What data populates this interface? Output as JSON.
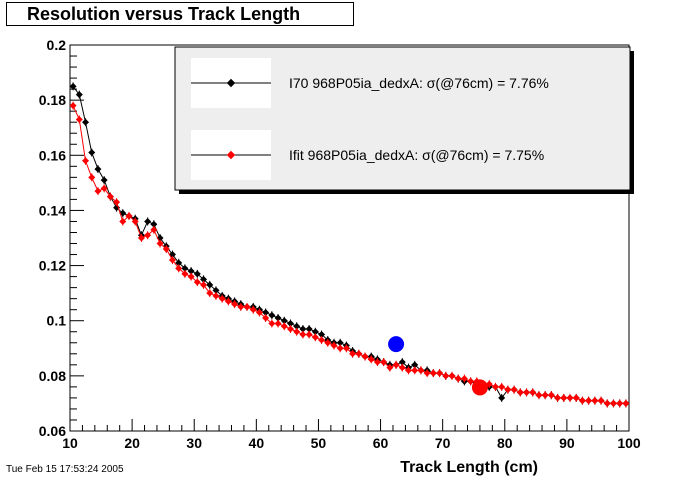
{
  "timestamp": "Tue Feb 15 17:53:24 2005",
  "chart_data": {
    "type": "scatter",
    "title": "Resolution versus Track Length",
    "xlabel": "Track Length (cm)",
    "ylabel": "",
    "xlim": [
      10,
      100
    ],
    "ylim": [
      0.06,
      0.2
    ],
    "x_ticks": [
      10,
      20,
      30,
      40,
      50,
      60,
      70,
      80,
      90,
      100
    ],
    "x_tick_labels": [
      "10",
      "20",
      "30",
      "40",
      "50",
      "60",
      "70",
      "80",
      "90",
      "100"
    ],
    "y_ticks": [
      0.06,
      0.08,
      0.1,
      0.12,
      0.14,
      0.16,
      0.18,
      0.2
    ],
    "y_tick_labels": [
      "0.06",
      "0.08",
      "0.1",
      "0.12",
      "0.14",
      "0.16",
      "0.18",
      "0.2"
    ],
    "grid": false,
    "legend_position": "top-right",
    "series": [
      {
        "name": "I70   968P05ia_dedxA:  σ(@76cm) =  7.76%",
        "color": "#000000",
        "x": [
          10.5,
          11.5,
          12.5,
          13.5,
          14.5,
          15.5,
          16.5,
          17.5,
          18.5,
          19.5,
          20.5,
          21.5,
          22.5,
          23.5,
          24.5,
          25.5,
          26.5,
          27.5,
          28.5,
          29.5,
          30.5,
          31.5,
          32.5,
          33.5,
          34.5,
          35.5,
          36.5,
          37.5,
          38.5,
          39.5,
          40.5,
          41.5,
          42.5,
          43.5,
          44.5,
          45.5,
          46.5,
          47.5,
          48.5,
          49.5,
          50.5,
          51.5,
          52.5,
          53.5,
          54.5,
          55.5,
          56.5,
          57.5,
          58.5,
          59.5,
          60.5,
          61.5,
          62.5,
          63.5,
          64.5,
          65.5,
          66.5,
          67.5,
          68.5,
          69.5,
          70.5,
          71.5,
          72.5,
          73.5,
          74.5,
          75.5,
          76.5,
          77.5,
          78.5,
          79.5,
          80.5,
          81.5,
          82.5,
          83.5,
          84.5,
          85.5,
          86.5,
          87.5,
          88.5,
          89.5,
          90.5,
          91.5,
          92.5,
          93.5,
          94.5,
          95.5,
          96.5,
          97.5,
          98.5,
          99.5
        ],
        "y": [
          0.185,
          0.182,
          0.172,
          0.161,
          0.155,
          0.151,
          0.145,
          0.141,
          0.139,
          0.138,
          0.137,
          0.131,
          0.136,
          0.135,
          0.13,
          0.127,
          0.124,
          0.121,
          0.119,
          0.118,
          0.117,
          0.115,
          0.113,
          0.111,
          0.109,
          0.108,
          0.107,
          0.106,
          0.105,
          0.105,
          0.104,
          0.103,
          0.102,
          0.101,
          0.1,
          0.099,
          0.098,
          0.097,
          0.097,
          0.096,
          0.095,
          0.093,
          0.092,
          0.092,
          0.091,
          0.089,
          0.088,
          0.087,
          0.087,
          0.086,
          0.085,
          0.084,
          0.084,
          0.085,
          0.083,
          0.084,
          0.082,
          0.082,
          0.081,
          0.081,
          0.08,
          0.08,
          0.079,
          0.078,
          0.078,
          0.077,
          0.077,
          0.076,
          0.076,
          0.072,
          0.075,
          0.075,
          0.074,
          0.074,
          0.074,
          0.073,
          0.073,
          0.073,
          0.072,
          0.072,
          0.072,
          0.072,
          0.071,
          0.071,
          0.071,
          0.071,
          0.07,
          0.07,
          0.07,
          0.07
        ]
      },
      {
        "name": "Ifit  968P05ia_dedxA:  σ(@76cm) =  7.75%",
        "color": "#ff0000",
        "x": [
          10.5,
          11.5,
          12.5,
          13.5,
          14.5,
          15.5,
          16.5,
          17.5,
          18.5,
          19.5,
          20.5,
          21.5,
          22.5,
          23.5,
          24.5,
          25.5,
          26.5,
          27.5,
          28.5,
          29.5,
          30.5,
          31.5,
          32.5,
          33.5,
          34.5,
          35.5,
          36.5,
          37.5,
          38.5,
          39.5,
          40.5,
          41.5,
          42.5,
          43.5,
          44.5,
          45.5,
          46.5,
          47.5,
          48.5,
          49.5,
          50.5,
          51.5,
          52.5,
          53.5,
          54.5,
          55.5,
          56.5,
          57.5,
          58.5,
          59.5,
          60.5,
          61.5,
          62.5,
          63.5,
          64.5,
          65.5,
          66.5,
          67.5,
          68.5,
          69.5,
          70.5,
          71.5,
          72.5,
          73.5,
          74.5,
          75.5,
          76.5,
          77.5,
          78.5,
          79.5,
          80.5,
          81.5,
          82.5,
          83.5,
          84.5,
          85.5,
          86.5,
          87.5,
          88.5,
          89.5,
          90.5,
          91.5,
          92.5,
          93.5,
          94.5,
          95.5,
          96.5,
          97.5,
          98.5,
          99.5
        ],
        "y": [
          0.178,
          0.173,
          0.158,
          0.152,
          0.147,
          0.148,
          0.145,
          0.143,
          0.136,
          0.138,
          0.136,
          0.13,
          0.131,
          0.133,
          0.128,
          0.126,
          0.122,
          0.119,
          0.117,
          0.116,
          0.114,
          0.113,
          0.11,
          0.109,
          0.108,
          0.107,
          0.106,
          0.105,
          0.105,
          0.104,
          0.103,
          0.101,
          0.099,
          0.099,
          0.098,
          0.097,
          0.096,
          0.095,
          0.095,
          0.094,
          0.093,
          0.092,
          0.091,
          0.09,
          0.09,
          0.088,
          0.088,
          0.087,
          0.086,
          0.085,
          0.085,
          0.083,
          0.084,
          0.083,
          0.082,
          0.082,
          0.082,
          0.081,
          0.081,
          0.081,
          0.08,
          0.08,
          0.079,
          0.079,
          0.078,
          0.078,
          0.077,
          0.077,
          0.076,
          0.076,
          0.075,
          0.075,
          0.074,
          0.074,
          0.074,
          0.073,
          0.073,
          0.073,
          0.072,
          0.072,
          0.072,
          0.072,
          0.071,
          0.071,
          0.071,
          0.071,
          0.07,
          0.07,
          0.07,
          0.07
        ]
      },
      {
        "name": "",
        "color": "#0000ff",
        "marker": "large-circle",
        "x": [
          62.5
        ],
        "y": [
          0.0915
        ]
      },
      {
        "name": "",
        "color": "#ff0000",
        "marker": "large-circle",
        "x": [
          76
        ],
        "y": [
          0.0758
        ]
      }
    ]
  }
}
